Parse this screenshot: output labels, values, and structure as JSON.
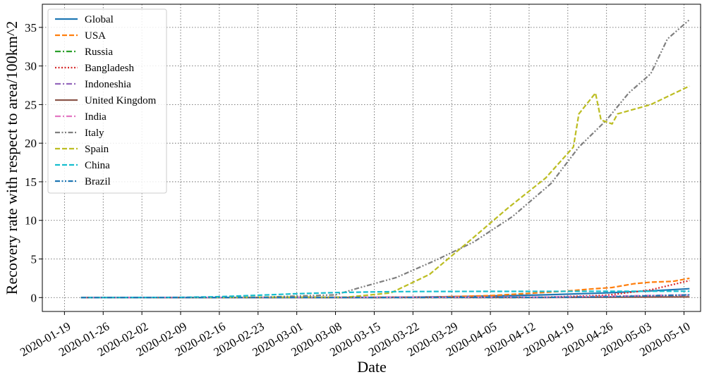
{
  "chart_data": {
    "type": "line",
    "title": "",
    "xlabel": "Date",
    "ylabel": "Recovery rate with respect to area/100km^2",
    "x_range": [
      "2020-01-15",
      "2020-05-13"
    ],
    "ylim": [
      -1.8,
      38
    ],
    "grid": true,
    "grid_style": "dotted",
    "legend_position": "upper-left",
    "x_ticks": [
      "2020-01-19",
      "2020-01-26",
      "2020-02-02",
      "2020-02-09",
      "2020-02-16",
      "2020-02-23",
      "2020-03-01",
      "2020-03-08",
      "2020-03-15",
      "2020-03-22",
      "2020-03-29",
      "2020-04-05",
      "2020-04-12",
      "2020-04-19",
      "2020-04-26",
      "2020-05-03",
      "2020-05-10"
    ],
    "y_ticks": [
      0,
      5,
      10,
      15,
      20,
      25,
      30,
      35
    ],
    "series": [
      {
        "name": "Global",
        "color": "#1f77b4",
        "dash": "solid",
        "x": [
          "2020-01-22",
          "2020-03-15",
          "2020-04-01",
          "2020-04-15",
          "2020-04-26",
          "2020-05-05",
          "2020-05-11"
        ],
        "y": [
          0,
          0,
          0.15,
          0.35,
          0.6,
          0.9,
          1.15
        ]
      },
      {
        "name": "USA",
        "color": "#ff7f0e",
        "dash": "dashed",
        "x": [
          "2020-01-22",
          "2020-03-25",
          "2020-04-05",
          "2020-04-12",
          "2020-04-19",
          "2020-04-23",
          "2020-04-27",
          "2020-05-01",
          "2020-05-04",
          "2020-05-08",
          "2020-05-11"
        ],
        "y": [
          0,
          0.05,
          0.25,
          0.55,
          0.85,
          1.1,
          1.3,
          1.8,
          2.0,
          2.1,
          2.5
        ]
      },
      {
        "name": "Russia",
        "color": "#2ca02c",
        "dash": "dashdot",
        "x": [
          "2020-01-22",
          "2020-04-10",
          "2020-04-26",
          "2020-05-11"
        ],
        "y": [
          0,
          0.02,
          0.08,
          0.3
        ]
      },
      {
        "name": "Bangladesh",
        "color": "#d62728",
        "dash": "dotted",
        "x": [
          "2020-01-22",
          "2020-04-15",
          "2020-04-26",
          "2020-05-04",
          "2020-05-11"
        ],
        "y": [
          0,
          0.05,
          0.3,
          1.0,
          2.2
        ]
      },
      {
        "name": "Indoneshia",
        "color": "#9467bd",
        "dash": "dashdot",
        "x": [
          "2020-01-22",
          "2020-04-15",
          "2020-05-11"
        ],
        "y": [
          0,
          0.05,
          0.3
        ]
      },
      {
        "name": "United Kingdom",
        "color": "#8c564b",
        "dash": "solid",
        "x": [
          "2020-01-22",
          "2020-04-15",
          "2020-05-11"
        ],
        "y": [
          0,
          0.02,
          0.08
        ]
      },
      {
        "name": "India",
        "color": "#e377c2",
        "dash": "dashdot",
        "x": [
          "2020-01-22",
          "2020-04-15",
          "2020-05-11"
        ],
        "y": [
          0,
          0.05,
          0.35
        ]
      },
      {
        "name": "Italy",
        "color": "#7f7f7f",
        "dash": "dashdotdot",
        "x": [
          "2020-01-22",
          "2020-02-22",
          "2020-03-08",
          "2020-03-12",
          "2020-03-19",
          "2020-03-26",
          "2020-04-02",
          "2020-04-09",
          "2020-04-16",
          "2020-04-21",
          "2020-04-26",
          "2020-04-30",
          "2020-05-04",
          "2020-05-07",
          "2020-05-11"
        ],
        "y": [
          0,
          0.01,
          0.35,
          1.2,
          2.6,
          4.8,
          7.2,
          10.5,
          14.8,
          19.5,
          23.0,
          26.5,
          29.0,
          33.5,
          36.0
        ]
      },
      {
        "name": "Spain",
        "color": "#bcbd22",
        "dash": "dashed",
        "x": [
          "2020-01-22",
          "2020-03-10",
          "2020-03-18",
          "2020-03-25",
          "2020-04-01",
          "2020-04-08",
          "2020-04-15",
          "2020-04-20",
          "2020-04-21",
          "2020-04-24",
          "2020-04-25",
          "2020-04-27",
          "2020-04-28",
          "2020-05-04",
          "2020-05-11"
        ],
        "y": [
          0,
          0.05,
          0.6,
          3.0,
          7.2,
          11.5,
          15.5,
          19.5,
          23.8,
          26.5,
          23.0,
          22.5,
          23.8,
          25.0,
          27.4
        ]
      },
      {
        "name": "China",
        "color": "#17becf",
        "dash": "dashed",
        "x": [
          "2020-01-22",
          "2020-02-09",
          "2020-02-16",
          "2020-02-23",
          "2020-03-01",
          "2020-03-08",
          "2020-03-15",
          "2020-03-22",
          "2020-04-05",
          "2020-05-11"
        ],
        "y": [
          0,
          0.03,
          0.12,
          0.3,
          0.5,
          0.65,
          0.74,
          0.78,
          0.8,
          0.82
        ]
      },
      {
        "name": "Brazil",
        "color": "#1f77b4",
        "dash": "dashdotdot",
        "x": [
          "2020-01-22",
          "2020-04-15",
          "2020-04-26",
          "2020-05-11"
        ],
        "y": [
          0,
          0.03,
          0.1,
          0.35
        ]
      }
    ]
  }
}
